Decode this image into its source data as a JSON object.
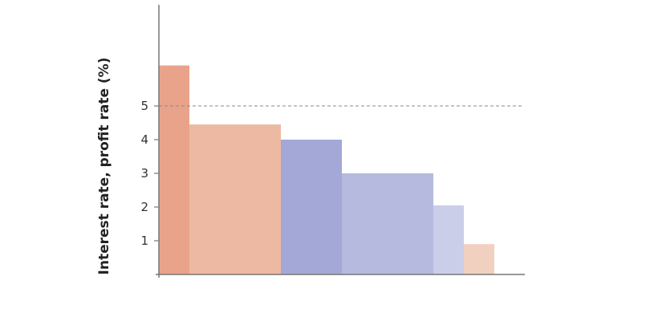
{
  "chart_data": {
    "type": "bar",
    "title": "",
    "xlabel": "",
    "ylabel": "Interest rate, profit rate (%)",
    "ylim": [
      0,
      8
    ],
    "xlim": [
      0,
      12
    ],
    "yticks": [
      1,
      2,
      3,
      4,
      5
    ],
    "grid": false,
    "reference_line": {
      "y": 5,
      "style": "dashed",
      "color": "#888888"
    },
    "bars": [
      {
        "x_start": 0,
        "width": 1,
        "value": 6.2,
        "color": "#E9A38A"
      },
      {
        "x_start": 1,
        "width": 3,
        "value": 4.45,
        "color": "#EDB9A3"
      },
      {
        "x_start": 4,
        "width": 2,
        "value": 4.0,
        "color": "#A3A8D6"
      },
      {
        "x_start": 6,
        "width": 3,
        "value": 3.0,
        "color": "#B6BADF"
      },
      {
        "x_start": 9,
        "width": 1,
        "value": 2.05,
        "color": "#CBCEE9"
      },
      {
        "x_start": 10,
        "width": 1,
        "value": 0.9,
        "color": "#F2D0C0"
      }
    ]
  }
}
